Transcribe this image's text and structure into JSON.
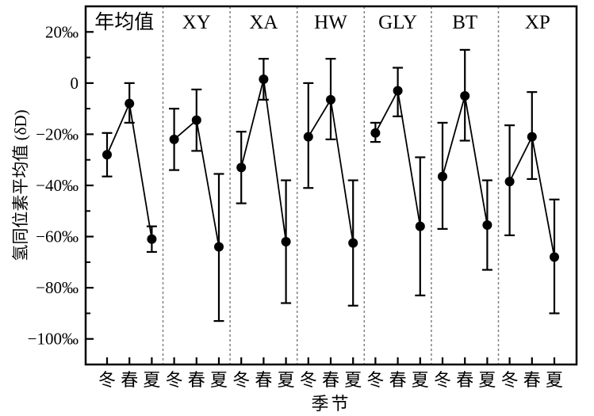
{
  "chart_data": {
    "type": "line",
    "title": "",
    "ylabel": "氢同位素平均值 (δD)",
    "xlabel": "季节",
    "unit": "‰",
    "ylim": [
      -110,
      30
    ],
    "grid": false,
    "error_bars": true,
    "marker": "filled-circle",
    "y_major_ticks": [
      {
        "value": 20,
        "label": "20‰"
      },
      {
        "value": 0,
        "label": "0"
      },
      {
        "value": -20,
        "label": "−20‰"
      },
      {
        "value": -40,
        "label": "−40‰"
      },
      {
        "value": -60,
        "label": "−60‰"
      },
      {
        "value": -80,
        "label": "−80‰"
      },
      {
        "value": -100,
        "label": "−100‰"
      }
    ],
    "y_minor_ticks": [
      10,
      -10,
      -30,
      -50,
      -70,
      -90
    ],
    "categories": [
      "冬",
      "春",
      "夏"
    ],
    "groups": [
      {
        "name": "年均值",
        "points": [
          {
            "season": "冬",
            "value": -28,
            "upper": -19.5,
            "lower": -36.5
          },
          {
            "season": "春",
            "value": -8,
            "upper": 0,
            "lower": -15.5
          },
          {
            "season": "夏",
            "value": -61,
            "upper": -56,
            "lower": -66
          }
        ]
      },
      {
        "name": "XY",
        "points": [
          {
            "season": "冬",
            "value": -22,
            "upper": -10,
            "lower": -34
          },
          {
            "season": "春",
            "value": -14.5,
            "upper": -2.5,
            "lower": -26.5
          },
          {
            "season": "夏",
            "value": -64,
            "upper": -35.5,
            "lower": -93
          }
        ]
      },
      {
        "name": "XA",
        "points": [
          {
            "season": "冬",
            "value": -33,
            "upper": -19,
            "lower": -47
          },
          {
            "season": "春",
            "value": 1.5,
            "upper": 9.5,
            "lower": -6.5
          },
          {
            "season": "夏",
            "value": -62,
            "upper": -38,
            "lower": -86
          }
        ]
      },
      {
        "name": "HW",
        "points": [
          {
            "season": "冬",
            "value": -21,
            "upper": 0,
            "lower": -41
          },
          {
            "season": "春",
            "value": -6.5,
            "upper": 9.5,
            "lower": -22
          },
          {
            "season": "夏",
            "value": -62.5,
            "upper": -38,
            "lower": -87
          }
        ]
      },
      {
        "name": "GLY",
        "points": [
          {
            "season": "冬",
            "value": -19.5,
            "upper": -15.5,
            "lower": -23
          },
          {
            "season": "春",
            "value": -3,
            "upper": 6,
            "lower": -13
          },
          {
            "season": "夏",
            "value": -56,
            "upper": -29,
            "lower": -83
          }
        ]
      },
      {
        "name": "BT",
        "points": [
          {
            "season": "冬",
            "value": -36.5,
            "upper": -15.5,
            "lower": -57
          },
          {
            "season": "春",
            "value": -5,
            "upper": 13,
            "lower": -22.5
          },
          {
            "season": "夏",
            "value": -55.5,
            "upper": -38,
            "lower": -73
          }
        ]
      },
      {
        "name": "XP",
        "points": [
          {
            "season": "冬",
            "value": -38.5,
            "upper": -16.5,
            "lower": -59.5
          },
          {
            "season": "春",
            "value": -21,
            "upper": -3.5,
            "lower": -37.5
          },
          {
            "season": "夏",
            "value": -68,
            "upper": -45.5,
            "lower": -90
          }
        ]
      }
    ]
  },
  "style": {
    "background": "#ffffff",
    "data_color": "#000000",
    "axis_color": "#000000",
    "separator_color": "#808080"
  }
}
